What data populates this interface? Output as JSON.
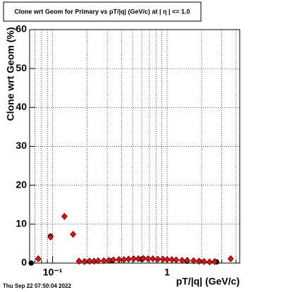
{
  "chart_data": {
    "type": "scatter",
    "title": "Clone wrt Geom for Primary vs pT/|q| (GeV/c) at |  η  | <= 1.0",
    "x_label": "pT/|q| (GeV/c)",
    "y_label": "Clone wrt Geom (%)",
    "footer": "Thu Sep 22 07:50:04 2022",
    "log_x": true,
    "grid": true,
    "xlim": [
      0.063,
      4.3
    ],
    "xticks": [
      {
        "value": 0.1,
        "label": "10⁻¹"
      },
      1
    ],
    "ylim": [
      0,
      60
    ],
    "yticks": [
      0,
      10,
      20,
      30,
      40,
      50,
      60
    ],
    "series": [
      {
        "color": "#000000",
        "marker": "circle",
        "x": [
          0.065,
          0.096,
          0.33,
          0.6,
          1.49,
          2.7
        ],
        "values": [
          0,
          6.9,
          0.6,
          1.0,
          0.5,
          0.3
        ]
      },
      {
        "color": "#ff0000",
        "marker": "diamond",
        "x": [
          0.075,
          0.096,
          0.127,
          0.151,
          0.17,
          0.19,
          0.21,
          0.23,
          0.25,
          0.28,
          0.31,
          0.34,
          0.38,
          0.42,
          0.46,
          0.51,
          0.56,
          0.62,
          0.68,
          0.75,
          0.83,
          0.92,
          1.0,
          1.1,
          1.2,
          1.35,
          1.5,
          1.7,
          1.9,
          2.1,
          2.35,
          2.6,
          3.59
        ],
        "values": [
          1.1,
          6.7,
          12.0,
          7.4,
          0.5,
          0.4,
          0.5,
          0.5,
          0.6,
          0.6,
          0.7,
          0.8,
          0.9,
          0.9,
          1.0,
          1.1,
          1.1,
          1.2,
          1.1,
          1.1,
          1.0,
          1.0,
          0.9,
          0.9,
          0.8,
          0.7,
          0.7,
          0.6,
          0.5,
          0.4,
          0.3,
          0.4,
          1.1
        ]
      }
    ]
  }
}
